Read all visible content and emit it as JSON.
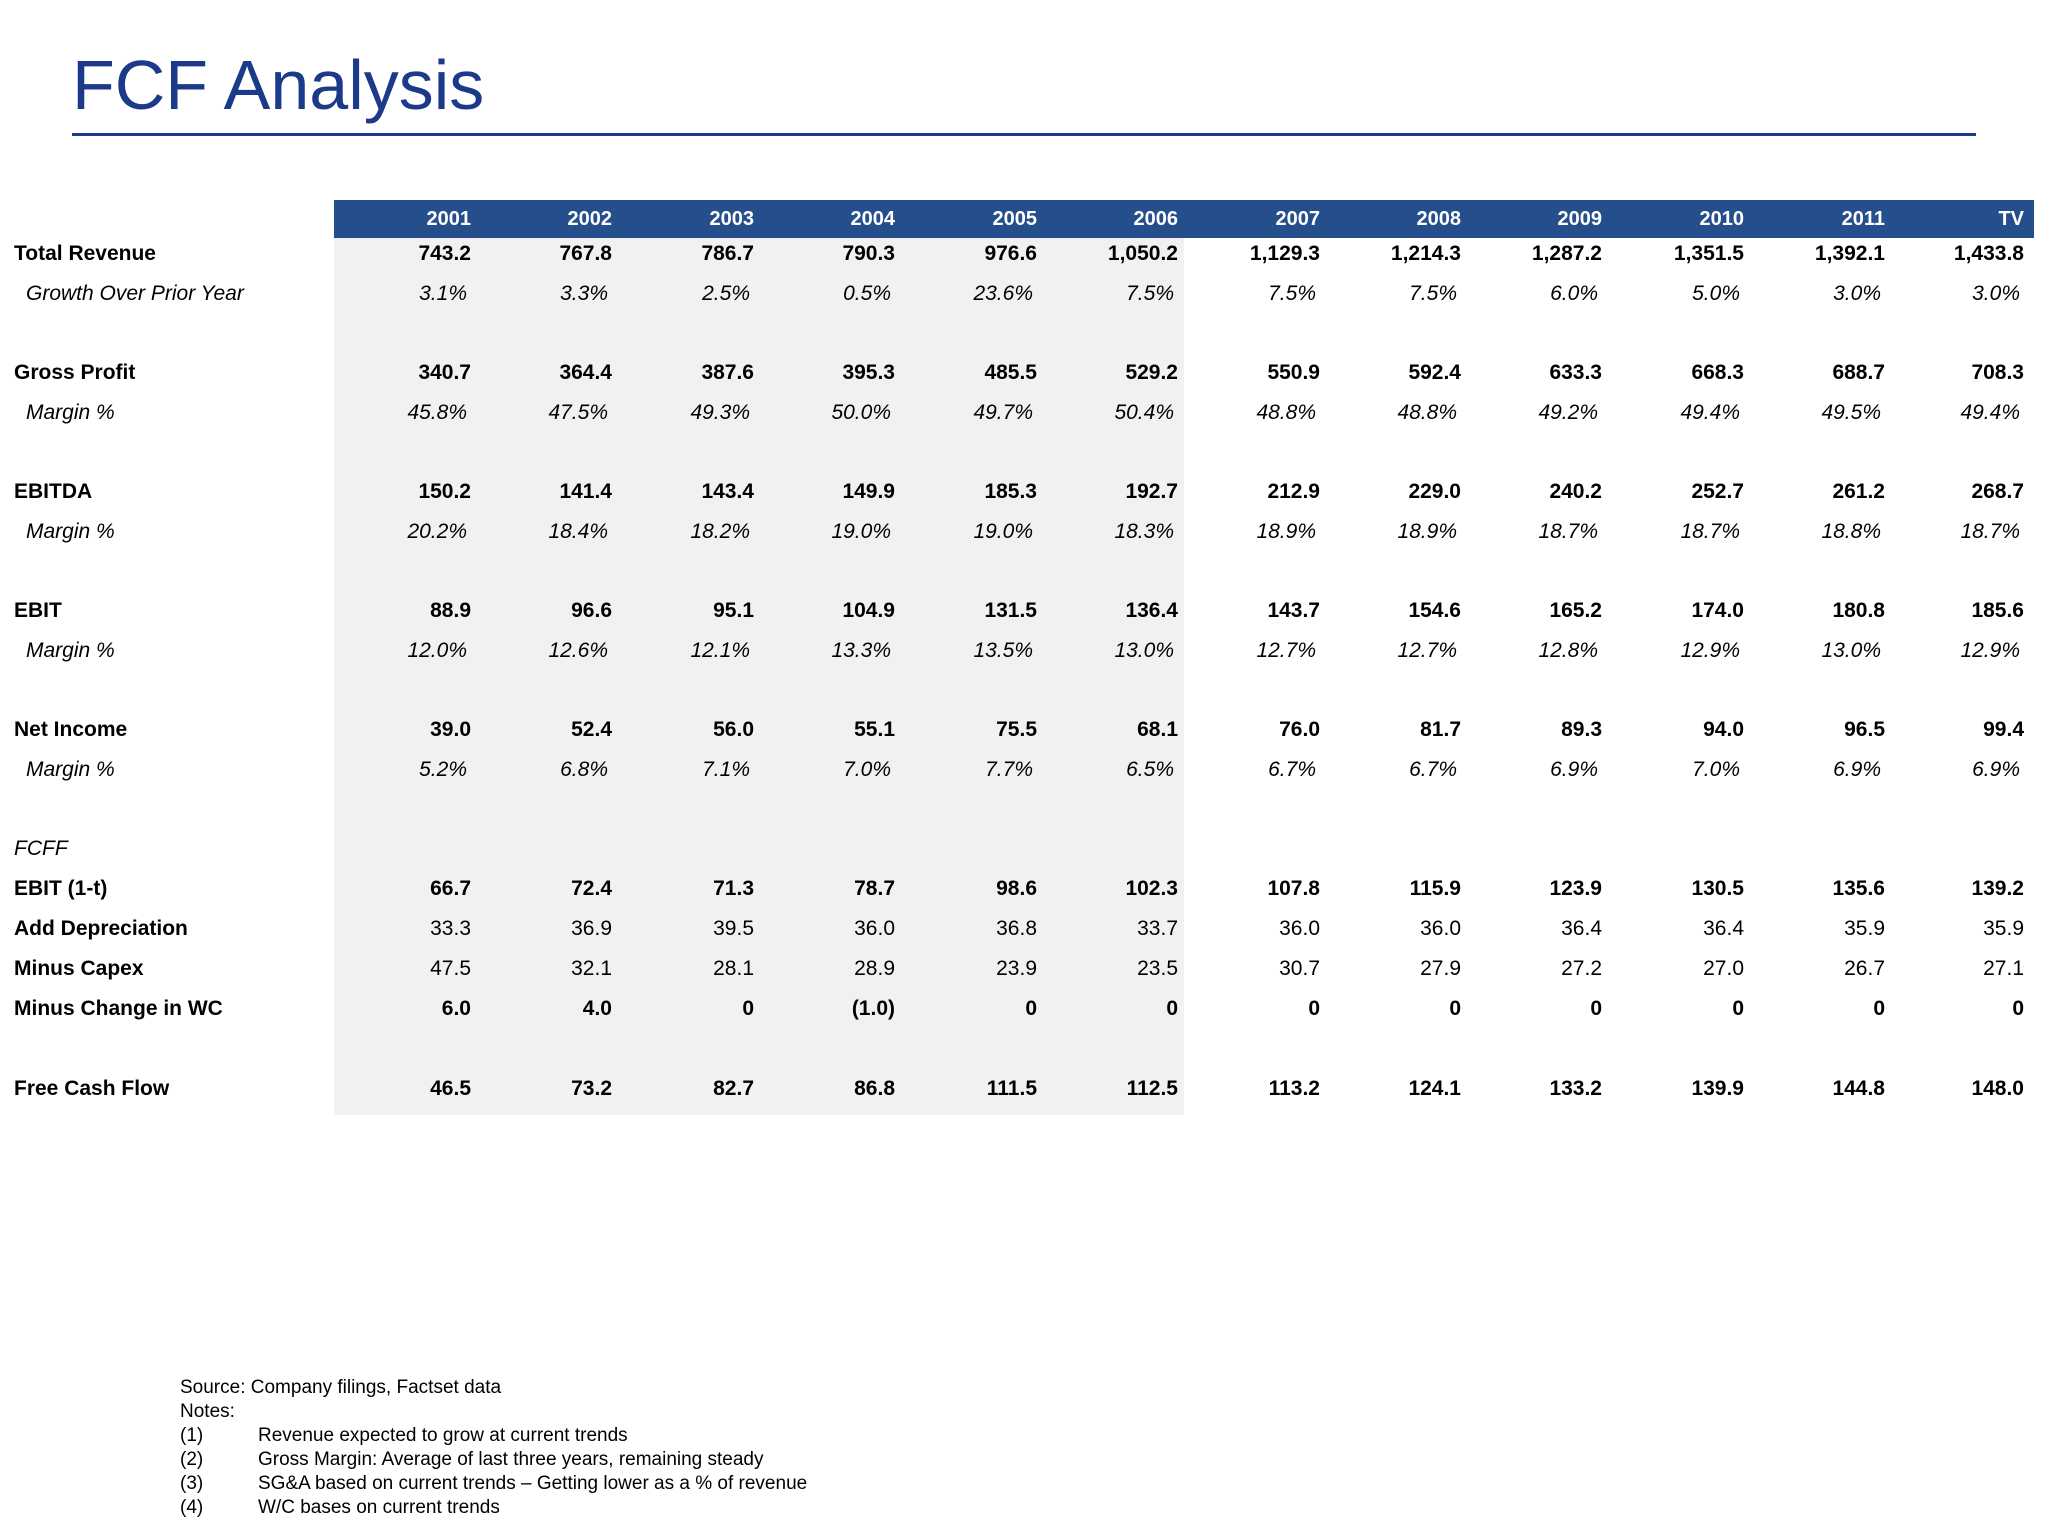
{
  "title": "FCF Analysis",
  "columns": [
    "2001",
    "2002",
    "2003",
    "2004",
    "2005",
    "2006",
    "2007",
    "2008",
    "2009",
    "2010",
    "2011",
    "TV"
  ],
  "rows": [
    {
      "label": "Total Revenue",
      "style": "bold",
      "values": [
        "743.2",
        "767.8",
        "786.7",
        "790.3",
        "976.6",
        "1,050.2",
        "1,129.3",
        "1,214.3",
        "1,287.2",
        "1,351.5",
        "1,392.1",
        "1,433.8"
      ]
    },
    {
      "label": "Growth Over Prior Year",
      "style": "italic",
      "values": [
        "3.1%",
        "3.3%",
        "2.5%",
        "0.5%",
        "23.6%",
        "7.5%",
        "7.5%",
        "7.5%",
        "6.0%",
        "5.0%",
        "3.0%",
        "3.0%"
      ]
    },
    {
      "label": "Gross Profit",
      "style": "bold",
      "values": [
        "340.7",
        "364.4",
        "387.6",
        "395.3",
        "485.5",
        "529.2",
        "550.9",
        "592.4",
        "633.3",
        "668.3",
        "688.7",
        "708.3"
      ]
    },
    {
      "label": "Margin %",
      "style": "italic",
      "values": [
        "45.8%",
        "47.5%",
        "49.3%",
        "50.0%",
        "49.7%",
        "50.4%",
        "48.8%",
        "48.8%",
        "49.2%",
        "49.4%",
        "49.5%",
        "49.4%"
      ]
    },
    {
      "label": "EBITDA",
      "style": "bold",
      "values": [
        "150.2",
        "141.4",
        "143.4",
        "149.9",
        "185.3",
        "192.7",
        "212.9",
        "229.0",
        "240.2",
        "252.7",
        "261.2",
        "268.7"
      ]
    },
    {
      "label": "Margin %",
      "style": "italic",
      "values": [
        "20.2%",
        "18.4%",
        "18.2%",
        "19.0%",
        "19.0%",
        "18.3%",
        "18.9%",
        "18.9%",
        "18.7%",
        "18.7%",
        "18.8%",
        "18.7%"
      ]
    },
    {
      "label": "EBIT",
      "style": "bold",
      "values": [
        "88.9",
        "96.6",
        "95.1",
        "104.9",
        "131.5",
        "136.4",
        "143.7",
        "154.6",
        "165.2",
        "174.0",
        "180.8",
        "185.6"
      ]
    },
    {
      "label": "Margin %",
      "style": "italic",
      "values": [
        "12.0%",
        "12.6%",
        "12.1%",
        "13.3%",
        "13.5%",
        "13.0%",
        "12.7%",
        "12.7%",
        "12.8%",
        "12.9%",
        "13.0%",
        "12.9%"
      ]
    },
    {
      "label": "Net Income",
      "style": "bold",
      "values": [
        "39.0",
        "52.4",
        "56.0",
        "55.1",
        "75.5",
        "68.1",
        "76.0",
        "81.7",
        "89.3",
        "94.0",
        "96.5",
        "99.4"
      ]
    },
    {
      "label": "Margin %",
      "style": "italic",
      "values": [
        "5.2%",
        "6.8%",
        "7.1%",
        "7.0%",
        "7.7%",
        "6.5%",
        "6.7%",
        "6.7%",
        "6.9%",
        "7.0%",
        "6.9%",
        "6.9%"
      ]
    },
    {
      "label": "FCFF",
      "style": "section",
      "values": []
    },
    {
      "label": "EBIT (1-t)",
      "style": "bold",
      "values": [
        "66.7",
        "72.4",
        "71.3",
        "78.7",
        "98.6",
        "102.3",
        "107.8",
        "115.9",
        "123.9",
        "130.5",
        "135.6",
        "139.2"
      ]
    },
    {
      "label": "Add Depreciation",
      "style": "label-bold",
      "values": [
        "33.3",
        "36.9",
        "39.5",
        "36.0",
        "36.8",
        "33.7",
        "36.0",
        "36.0",
        "36.4",
        "36.4",
        "35.9",
        "35.9"
      ]
    },
    {
      "label": "Minus Capex",
      "style": "label-bold",
      "values": [
        "47.5",
        "32.1",
        "28.1",
        "28.9",
        "23.9",
        "23.5",
        "30.7",
        "27.9",
        "27.2",
        "27.0",
        "26.7",
        "27.1"
      ]
    },
    {
      "label": "Minus Change in WC",
      "style": "bold",
      "values": [
        "6.0",
        "4.0",
        "0",
        "(1.0)",
        "0",
        "0",
        "0",
        "0",
        "0",
        "0",
        "0",
        "0"
      ]
    },
    {
      "label": "Free Cash Flow",
      "style": "bold",
      "values": [
        "46.5",
        "73.2",
        "82.7",
        "86.8",
        "111.5",
        "112.5",
        "113.2",
        "124.1",
        "133.2",
        "139.9",
        "144.8",
        "148.0"
      ]
    }
  ],
  "source": "Source: Company filings, Factset data",
  "notes_label": "Notes:",
  "notes": [
    {
      "num": "(1)",
      "text": "Revenue expected to grow at current trends"
    },
    {
      "num": "(2)",
      "text": "Gross Margin: Average of last three years, remaining steady"
    },
    {
      "num": "(3)",
      "text": "SG&A based on current trends – Getting lower as a % of revenue"
    },
    {
      "num": "(4)",
      "text": "W/C bases on current trends"
    }
  ],
  "colors": {
    "title": "#1b3a8a",
    "header_band": "#254e8c",
    "historical_shade": "#f1f0f3"
  }
}
